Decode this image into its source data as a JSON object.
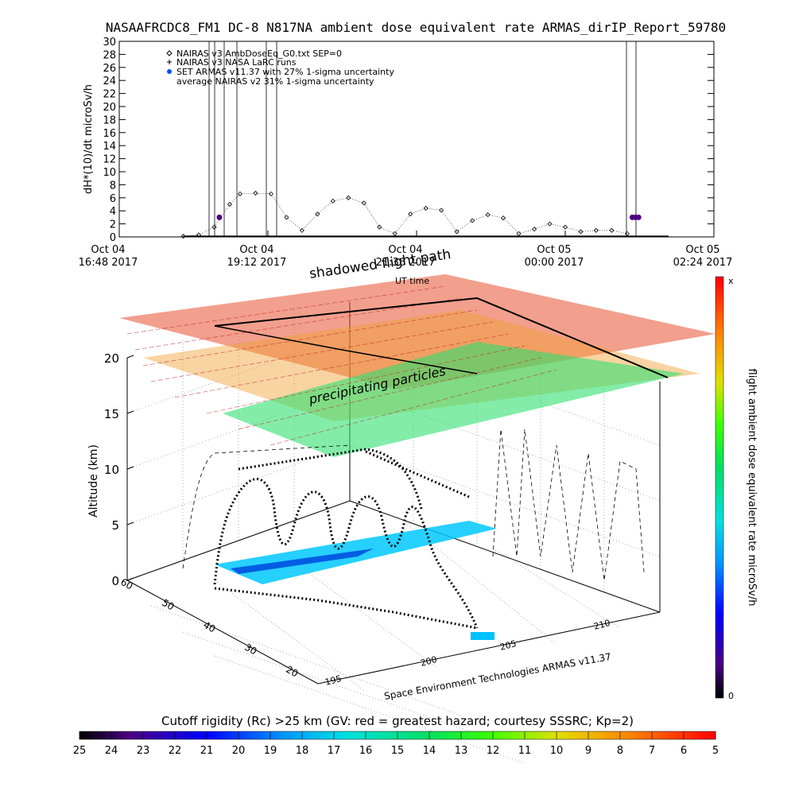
{
  "title": "NASAAFRCDC8_FM1 DC-8   N817NA ambient dose equivalent rate ARMAS_dirIP_Report_59780",
  "top_chart": {
    "ylabel": "dH*(10)/dt microSv/h",
    "yticks": [
      "0",
      "2",
      "4",
      "6",
      "8",
      "10",
      "12",
      "14",
      "16",
      "18",
      "20",
      "22",
      "24",
      "26",
      "28",
      "30"
    ],
    "xtick_labels": [
      {
        "line1": "Oct 04",
        "line2": "16:48 2017"
      },
      {
        "line1": "Oct 04",
        "line2": "19:12 2017"
      },
      {
        "line1": "Oct 04",
        "line2": "21:36 2017"
      },
      {
        "line1": "Oct 05",
        "line2": "00:00 2017"
      },
      {
        "line1": "Oct 05",
        "line2": "02:24 2017"
      }
    ],
    "legend": [
      {
        "symbol": "diamond",
        "label": "NAIRAS v3 AmbDoseEq_G0.txt SEP=0"
      },
      {
        "symbol": "plus",
        "label": "NAIRAS v3 NASA LaRC runs"
      },
      {
        "symbol": "blue-dot",
        "label": "SET ARMAS v11.37 with 27% 1-sigma uncertainty"
      },
      {
        "symbol": "none",
        "label": "average NAIRAS v2 31% 1-sigma uncertainty"
      }
    ]
  },
  "chart_data": [
    {
      "type": "line",
      "x_axis": "UT time",
      "xlim": [
        "2017-10-04 16:48",
        "2017-10-05 02:24"
      ],
      "ylim": [
        0,
        30
      ],
      "ylabel": "dH*(10)/dt microSv/h",
      "series": [
        {
          "name": "NAIRAS v3 AmbDoseEq_G0.txt SEP=0",
          "x": [
            "2017-10-04 17:50",
            "2017-10-04 18:05",
            "2017-10-04 18:20",
            "2017-10-04 18:35",
            "2017-10-04 18:45",
            "2017-10-04 19:00",
            "2017-10-04 19:15",
            "2017-10-04 19:30",
            "2017-10-04 19:45",
            "2017-10-04 20:00",
            "2017-10-04 20:15",
            "2017-10-04 20:30",
            "2017-10-04 20:45",
            "2017-10-04 21:00",
            "2017-10-04 21:15",
            "2017-10-04 21:30",
            "2017-10-04 21:45",
            "2017-10-04 22:00",
            "2017-10-04 22:15",
            "2017-10-04 22:30",
            "2017-10-04 22:45",
            "2017-10-04 23:00",
            "2017-10-04 23:15",
            "2017-10-04 23:30",
            "2017-10-04 23:45",
            "2017-10-05 00:00",
            "2017-10-05 00:15",
            "2017-10-05 00:30",
            "2017-10-05 00:45",
            "2017-10-05 01:00"
          ],
          "values": [
            0.1,
            0.3,
            1.5,
            5.0,
            6.6,
            6.7,
            6.6,
            3.0,
            1.0,
            3.5,
            5.5,
            6.0,
            5.2,
            1.5,
            0.5,
            3.5,
            4.4,
            4.1,
            0.8,
            2.5,
            3.4,
            2.9,
            0.5,
            1.2,
            2.0,
            1.5,
            0.8,
            1.0,
            1.0,
            0.5
          ]
        },
        {
          "name": "SET ARMAS v11.37 with 27% 1-sigma uncertainty",
          "x": [
            "2017-10-04 18:25",
            "2017-10-05 01:05",
            "2017-10-05 01:08",
            "2017-10-05 01:11"
          ],
          "values": [
            3.0,
            3.0,
            3.0,
            3.0
          ]
        }
      ]
    },
    {
      "type": "scatter",
      "title": "",
      "ylabel": "Altitude (km)",
      "zlim": [
        0,
        20
      ],
      "z_ticks": [
        "0",
        "5",
        "10",
        "15",
        "20"
      ],
      "lat_ticks": [
        "20",
        "30",
        "40",
        "50",
        "60"
      ],
      "lon_ticks": [
        "195",
        "200",
        "205",
        "210"
      ],
      "annotations": [
        "shadowed flight path",
        "UT time",
        "precipitating particles"
      ],
      "credit": "Space Environment Technologies ARMAS v11.37",
      "colorbar": {
        "label": "flight ambient dose equivalent rate microSv/h",
        "top": "x",
        "bottom": "0"
      }
    }
  ],
  "bottom_colorbar": {
    "title": "Cutoff rigidity (Rc) >25 km (GV: red = greatest hazard; courtesy SSSRC; Kp=2)",
    "ticks": [
      "25",
      "24",
      "23",
      "22",
      "21",
      "20",
      "19",
      "18",
      "17",
      "16",
      "15",
      "14",
      "13",
      "12",
      "11",
      "10",
      "9",
      "8",
      "7",
      "6",
      "5"
    ]
  }
}
